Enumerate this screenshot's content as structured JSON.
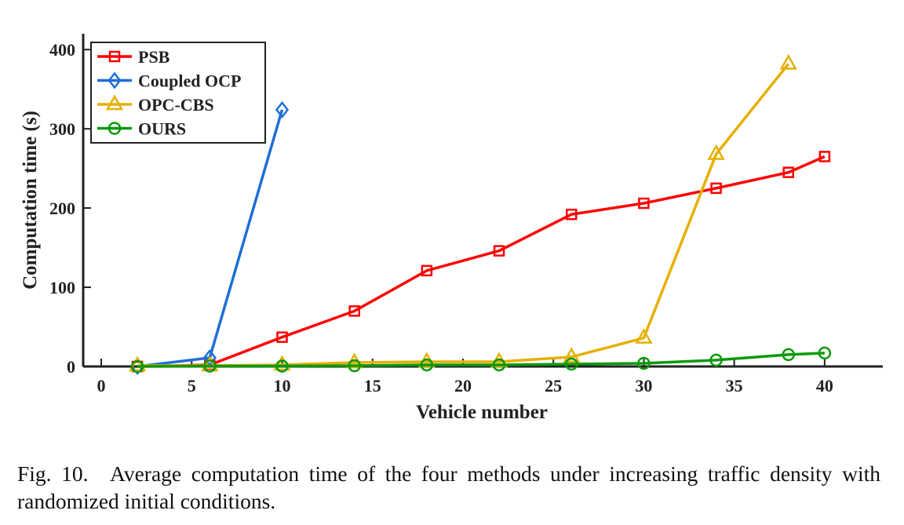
{
  "chart_data": {
    "type": "line",
    "xlabel": "Vehicle number",
    "ylabel": "Computation time (s)",
    "xlim": [
      -1,
      43
    ],
    "ylim": [
      0,
      420
    ],
    "xticks": [
      0,
      5,
      10,
      15,
      20,
      25,
      30,
      35,
      40
    ],
    "yticks": [
      0,
      100,
      200,
      300,
      400
    ],
    "grid": false,
    "legend_position": "top-left",
    "series": [
      {
        "name": "PSB",
        "color": "#ff0000",
        "marker": "square",
        "x": [
          2,
          6,
          10,
          14,
          18,
          22,
          26,
          30,
          34,
          38,
          40
        ],
        "y": [
          0,
          2,
          37,
          70,
          121,
          146,
          192,
          206,
          225,
          245,
          265
        ]
      },
      {
        "name": "Coupled OCP",
        "color": "#1f6fd6",
        "marker": "diamond",
        "x": [
          2,
          6,
          10
        ],
        "y": [
          0,
          11,
          324
        ]
      },
      {
        "name": "OPC-CBS",
        "color": "#e6b000",
        "marker": "triangle",
        "x": [
          2,
          6,
          10,
          14,
          18,
          22,
          26,
          30,
          34,
          38
        ],
        "y": [
          1,
          1,
          2,
          5,
          6,
          6,
          12,
          36,
          268,
          382
        ]
      },
      {
        "name": "OURS",
        "color": "#0a9a0a",
        "marker": "circle",
        "x": [
          2,
          6,
          10,
          14,
          18,
          22,
          26,
          30,
          34,
          38,
          40
        ],
        "y": [
          0,
          0.5,
          0.5,
          1,
          2,
          2,
          3,
          4,
          8,
          15,
          17
        ]
      }
    ]
  },
  "caption": "Fig. 10. Average computation time of the four methods under increasing traffic density with randomized initial conditions."
}
